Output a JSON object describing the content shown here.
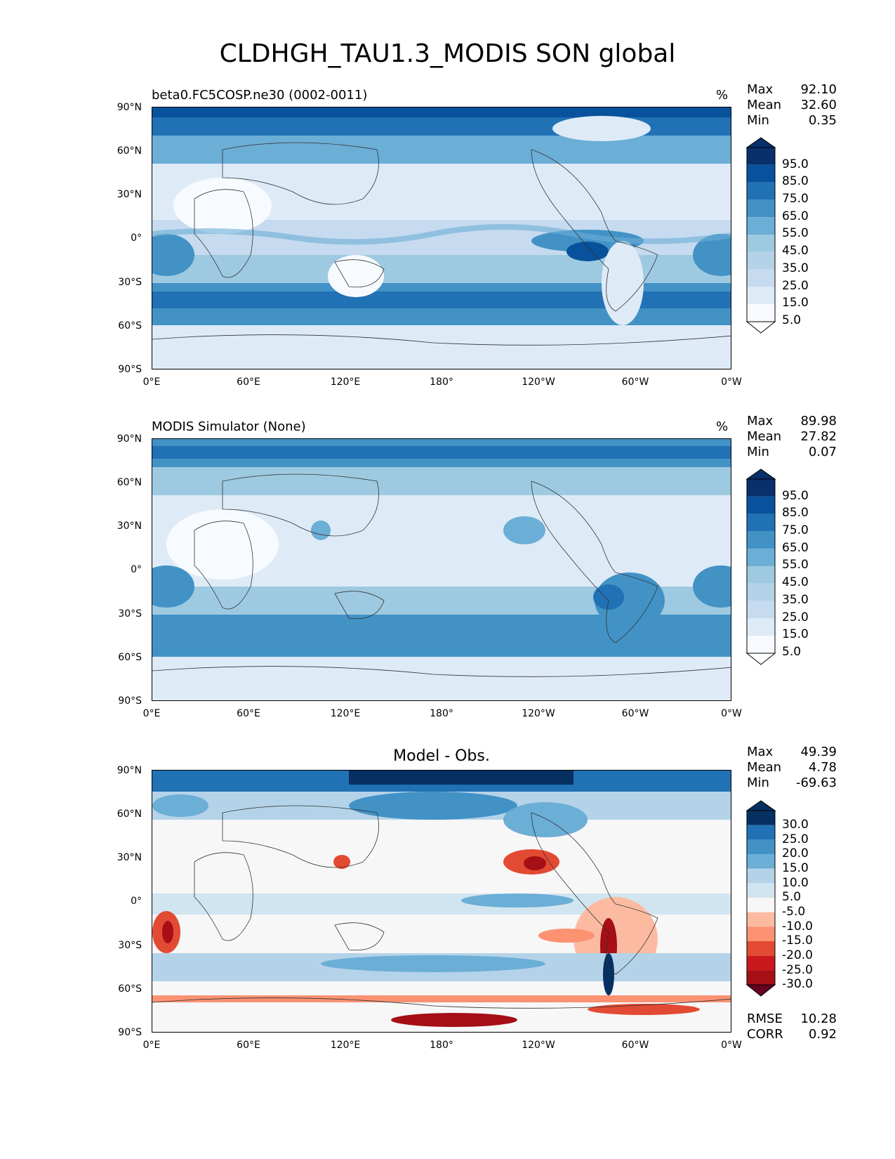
{
  "figure_title": "CLDHGH_TAU1.3_MODIS SON global",
  "colors": {
    "blues": [
      "#f7fbff",
      "#deebf7",
      "#c6dbef",
      "#b4d3e9",
      "#9ecae1",
      "#6baed6",
      "#4292c6",
      "#2171b5",
      "#08519c",
      "#08306b"
    ],
    "diverging": [
      "#67001f",
      "#a50f15",
      "#cb181d",
      "#e34a33",
      "#fc9272",
      "#fcbba1",
      "#f7f7f7",
      "#f7f7f7",
      "#d1e5f0",
      "#b4d3e9",
      "#6baed6",
      "#4292c6",
      "#2171b5",
      "#053061"
    ]
  },
  "axes": {
    "y_ticks": [
      "90°N",
      "60°N",
      "30°N",
      "0°",
      "30°S",
      "60°S",
      "90°S"
    ],
    "x_ticks": [
      "0°E",
      "60°E",
      "120°E",
      "180°",
      "120°W",
      "60°W",
      "0°W"
    ]
  },
  "panels": [
    {
      "title": "beta0.FC5COSP.ne30 (0002-0011)",
      "units": "%",
      "stats": [
        {
          "label": "Max",
          "value": "92.10"
        },
        {
          "label": "Mean",
          "value": "32.60"
        },
        {
          "label": "Min",
          "value": "0.35"
        }
      ],
      "colorbar_levels": [
        "95.0",
        "85.0",
        "75.0",
        "65.0",
        "55.0",
        "45.0",
        "35.0",
        "25.0",
        "15.0",
        "5.0"
      ]
    },
    {
      "title": "MODIS Simulator (None)",
      "units": "%",
      "stats": [
        {
          "label": "Max",
          "value": "89.98"
        },
        {
          "label": "Mean",
          "value": "27.82"
        },
        {
          "label": "Min",
          "value": "0.07"
        }
      ],
      "colorbar_levels": [
        "95.0",
        "85.0",
        "75.0",
        "65.0",
        "55.0",
        "45.0",
        "35.0",
        "25.0",
        "15.0",
        "5.0"
      ]
    },
    {
      "title": "Model - Obs.",
      "units": "",
      "stats": [
        {
          "label": "Max",
          "value": "49.39"
        },
        {
          "label": "Mean",
          "value": "4.78"
        },
        {
          "label": "Min",
          "value": "-69.63"
        }
      ],
      "colorbar_levels": [
        "30.0",
        "25.0",
        "20.0",
        "15.0",
        "10.0",
        "5.0",
        "-5.0",
        "-10.0",
        "-15.0",
        "-20.0",
        "-25.0",
        "-30.0"
      ],
      "footer_stats": [
        {
          "label": "RMSE",
          "value": "10.28"
        },
        {
          "label": "CORR",
          "value": "0.92"
        }
      ]
    }
  ]
}
